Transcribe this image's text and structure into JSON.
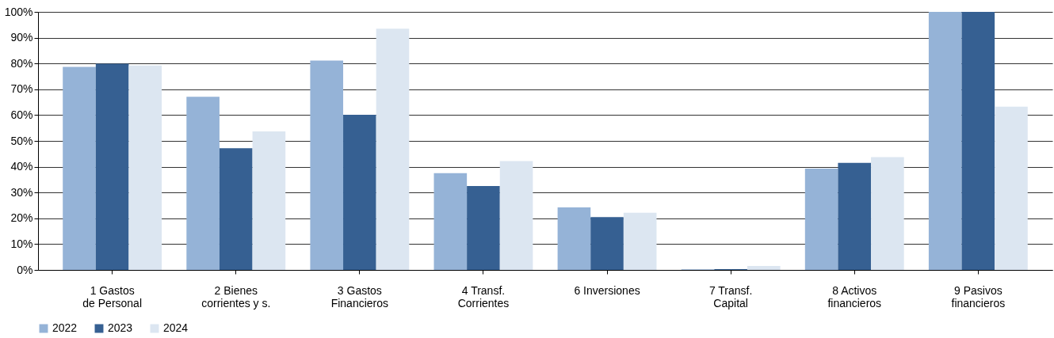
{
  "chart_data": {
    "type": "bar",
    "categories": [
      "1 Gastos\nde Personal",
      "2 Bienes\ncorrientes y s.",
      "3 Gastos\nFinancieros",
      "4 Transf.\nCorrientes",
      "6 Inversiones",
      "7 Transf.\nCapital",
      "8 Activos\nfinancieros",
      "9 Pasivos\nfinancieros"
    ],
    "series": [
      {
        "name": "2022",
        "color": "#95b3d7",
        "values": [
          78.7,
          67.1,
          81.1,
          37.5,
          24.2,
          0.2,
          39.3,
          100
        ]
      },
      {
        "name": "2023",
        "color": "#366092",
        "values": [
          79.9,
          47.2,
          60.1,
          32.5,
          20.5,
          0.3,
          41.5,
          100
        ]
      },
      {
        "name": "2024",
        "color": "#dce6f1",
        "values": [
          79.2,
          53.7,
          93.5,
          42.2,
          22.2,
          1.5,
          43.7,
          63.3
        ]
      }
    ],
    "ylim": [
      0,
      100
    ],
    "yticks": [
      {
        "value": 0,
        "label": "0%"
      },
      {
        "value": 10,
        "label": "10%"
      },
      {
        "value": 20,
        "label": "20%"
      },
      {
        "value": 30,
        "label": "30%"
      },
      {
        "value": 40,
        "label": "40%"
      },
      {
        "value": 50,
        "label": "50%"
      },
      {
        "value": 60,
        "label": "60%"
      },
      {
        "value": 70,
        "label": "70%"
      },
      {
        "value": 80,
        "label": "80%"
      },
      {
        "value": 90,
        "label": "90%"
      },
      {
        "value": 100,
        "label": "100%"
      }
    ],
    "grid": "y",
    "legend": "bottom"
  }
}
